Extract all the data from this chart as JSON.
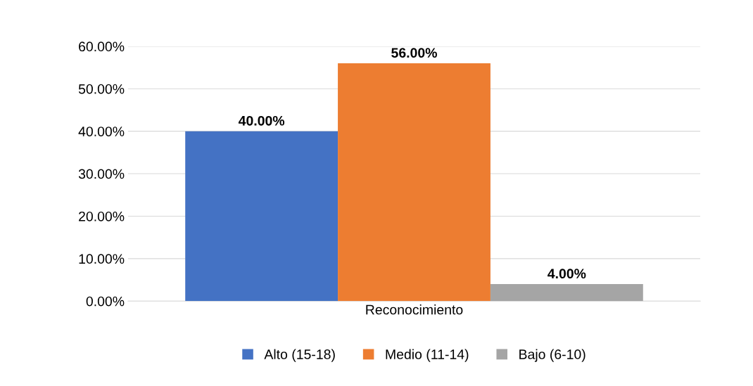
{
  "chart_data": {
    "type": "bar",
    "categories": [
      "Reconocimiento"
    ],
    "series": [
      {
        "name": "Alto (15-18)",
        "color": "#4472c4",
        "values": [
          40
        ],
        "value_labels": [
          "40.00%"
        ]
      },
      {
        "name": "Medio (11-14)",
        "color": "#ed7d31",
        "values": [
          56
        ],
        "value_labels": [
          "56.00%"
        ]
      },
      {
        "name": "Bajo (6-10)",
        "color": "#a5a5a5",
        "values": [
          4
        ],
        "value_labels": [
          "4.00%"
        ]
      }
    ],
    "ylim": [
      0,
      60
    ],
    "yticks": [
      {
        "value": 0,
        "label": "0.00%"
      },
      {
        "value": 10,
        "label": "10.00%"
      },
      {
        "value": 20,
        "label": "20.00%"
      },
      {
        "value": 30,
        "label": "30.00%"
      },
      {
        "value": 40,
        "label": "40.00%"
      },
      {
        "value": 50,
        "label": "50.00%"
      },
      {
        "value": 60,
        "label": "60.00%"
      }
    ],
    "grid": "y",
    "legend": "bottom"
  }
}
